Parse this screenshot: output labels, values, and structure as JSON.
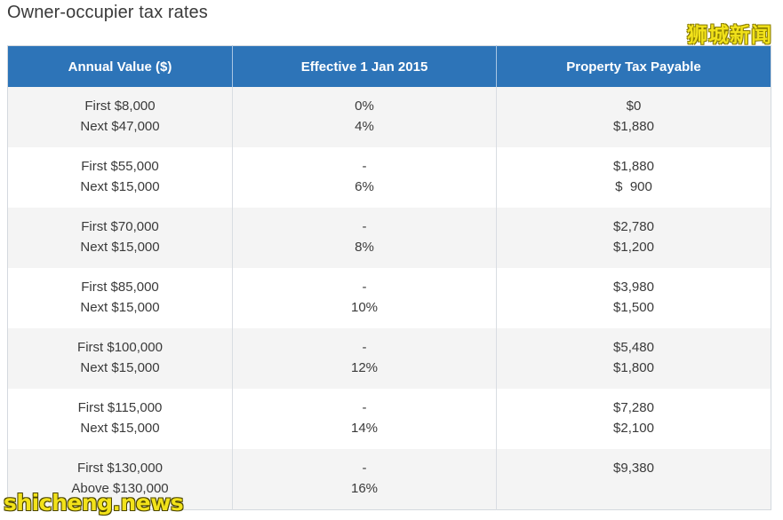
{
  "page_title": "Owner-occupier tax rates",
  "watermark_top": "狮城新闻",
  "watermark_bottom": "shicheng.news",
  "table": {
    "headers": [
      "Annual Value ($)",
      "Effective 1 Jan 2015",
      "Property Tax Payable"
    ],
    "rows": [
      {
        "annual_value": [
          "First $8,000",
          "Next $47,000"
        ],
        "rate": [
          "0%",
          "4%"
        ],
        "payable": [
          "$0",
          "$1,880"
        ]
      },
      {
        "annual_value": [
          "First $55,000",
          "Next $15,000"
        ],
        "rate": [
          "-",
          "6%"
        ],
        "payable": [
          "$1,880",
          "$  900"
        ]
      },
      {
        "annual_value": [
          "First $70,000",
          "Next $15,000"
        ],
        "rate": [
          "-",
          "8%"
        ],
        "payable": [
          "$2,780",
          "$1,200"
        ]
      },
      {
        "annual_value": [
          "First $85,000",
          "Next $15,000"
        ],
        "rate": [
          "-",
          "10%"
        ],
        "payable": [
          "$3,980",
          "$1,500"
        ]
      },
      {
        "annual_value": [
          "First $100,000",
          "Next $15,000"
        ],
        "rate": [
          "-",
          "12%"
        ],
        "payable": [
          "$5,480",
          "$1,800"
        ]
      },
      {
        "annual_value": [
          "First $115,000",
          "Next $15,000"
        ],
        "rate": [
          "-",
          "14%"
        ],
        "payable": [
          "$7,280",
          "$2,100"
        ]
      },
      {
        "annual_value": [
          "First $130,000",
          "Above $130,000"
        ],
        "rate": [
          "-",
          "16%"
        ],
        "payable": [
          "$9,380",
          ""
        ]
      }
    ]
  },
  "colors": {
    "header_bg": "#2d74b8",
    "row_alt_bg": "#f4f4f4",
    "watermark": "#f2e21a"
  }
}
